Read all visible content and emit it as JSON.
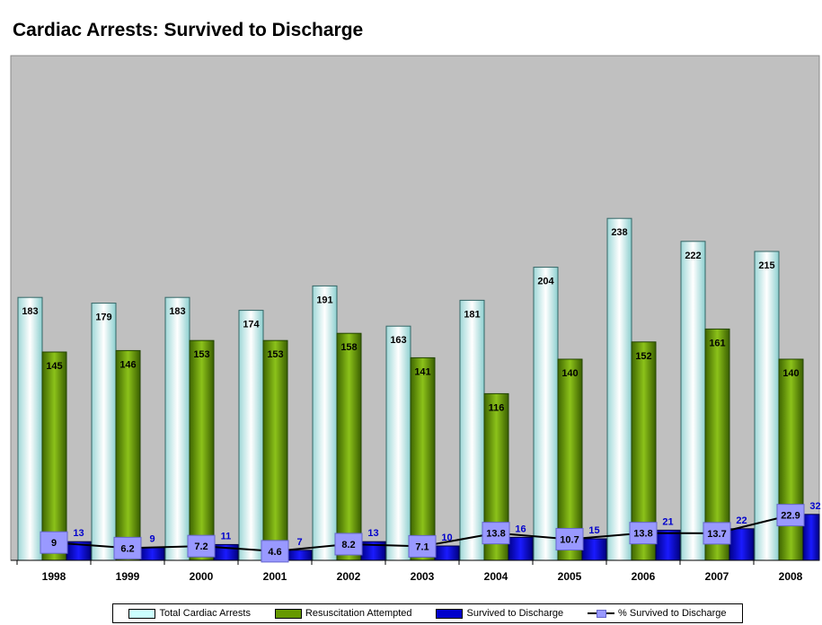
{
  "chart_data": {
    "type": "bar",
    "title": "Cardiac Arrests: Survived to Discharge",
    "categories": [
      "1998",
      "1999",
      "2000",
      "2001",
      "2002",
      "2003",
      "2004",
      "2005",
      "2006",
      "2007",
      "2008"
    ],
    "series": [
      {
        "name": "Total Cardiac Arrests",
        "type": "bar",
        "color": "#ccffff",
        "values": [
          183,
          179,
          183,
          174,
          191,
          163,
          181,
          204,
          238,
          222,
          215
        ]
      },
      {
        "name": "Resuscitation Attempted",
        "type": "bar",
        "color": "#669900",
        "values": [
          145,
          146,
          153,
          153,
          158,
          141,
          116,
          140,
          152,
          161,
          140
        ]
      },
      {
        "name": "Survived to Discharge",
        "type": "bar",
        "color": "#0000cc",
        "values": [
          13,
          9,
          11,
          7,
          13,
          10,
          16,
          15,
          21,
          22,
          32
        ]
      },
      {
        "name": "% Survived to Discharge",
        "type": "line",
        "color": "#9999ff",
        "values": [
          9,
          6.2,
          7.2,
          4.6,
          8.2,
          7.1,
          13.8,
          10.7,
          13.8,
          13.7,
          22.9
        ]
      }
    ],
    "ylim": [
      0,
      250
    ],
    "plot_background": "#c0c0c0",
    "legend_position": "bottom",
    "grid": false
  }
}
